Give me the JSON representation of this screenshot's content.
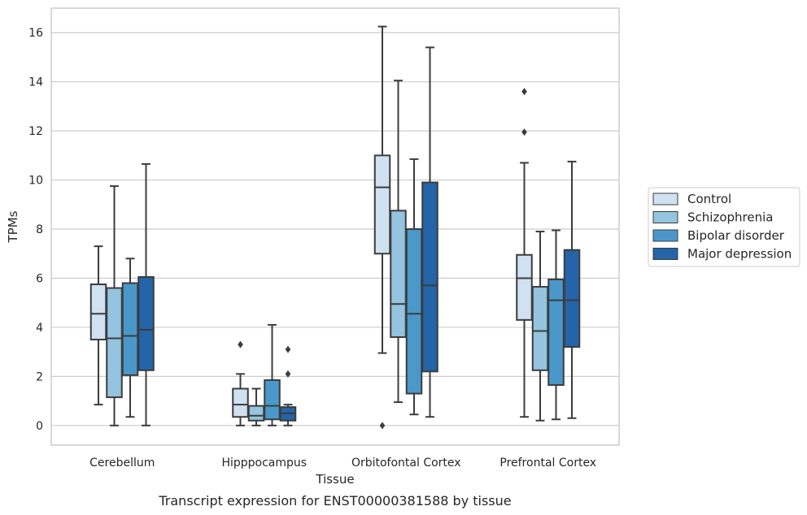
{
  "chart_data": {
    "type": "boxplot",
    "title": "Transcript expression for ENST00000381588 by tissue",
    "xlabel": "Tissue",
    "ylabel": "TPMs",
    "ylim": [
      -0.8,
      17
    ],
    "yticks": [
      0,
      2,
      4,
      6,
      8,
      10,
      12,
      14,
      16
    ],
    "grid": true,
    "legend_position": "right",
    "categories": [
      "Cerebellum",
      "Hipppocampus",
      "Orbitofontal Cortex",
      "Prefrontal Cortex"
    ],
    "series": [
      {
        "name": "Control",
        "color": "#d0e1f2",
        "boxes": [
          {
            "whislo": 0.85,
            "q1": 3.5,
            "med": 4.55,
            "q3": 5.75,
            "whishi": 7.3,
            "fliers": []
          },
          {
            "whislo": 0.0,
            "q1": 0.35,
            "med": 0.85,
            "q3": 1.5,
            "whishi": 2.1,
            "fliers": [
              3.3
            ]
          },
          {
            "whislo": 2.95,
            "q1": 7.0,
            "med": 9.7,
            "q3": 11.0,
            "whishi": 16.25,
            "fliers": [
              0.0
            ]
          },
          {
            "whislo": 0.35,
            "q1": 4.3,
            "med": 6.0,
            "q3": 6.95,
            "whishi": 10.7,
            "fliers": [
              11.95,
              13.6
            ]
          }
        ]
      },
      {
        "name": "Schizophrenia",
        "color": "#94c4df",
        "boxes": [
          {
            "whislo": 0.0,
            "q1": 1.15,
            "med": 3.55,
            "q3": 5.6,
            "whishi": 9.75,
            "fliers": []
          },
          {
            "whislo": 0.0,
            "q1": 0.2,
            "med": 0.4,
            "q3": 0.8,
            "whishi": 1.5,
            "fliers": []
          },
          {
            "whislo": 0.95,
            "q1": 3.6,
            "med": 4.95,
            "q3": 8.75,
            "whishi": 14.05,
            "fliers": []
          },
          {
            "whislo": 0.2,
            "q1": 2.25,
            "med": 3.85,
            "q3": 5.65,
            "whishi": 7.9,
            "fliers": []
          }
        ]
      },
      {
        "name": "Bipolar disorder",
        "color": "#4a98c9",
        "boxes": [
          {
            "whislo": 0.35,
            "q1": 2.05,
            "med": 3.65,
            "q3": 5.8,
            "whishi": 6.8,
            "fliers": []
          },
          {
            "whislo": 0.0,
            "q1": 0.25,
            "med": 0.8,
            "q3": 1.85,
            "whishi": 4.1,
            "fliers": []
          },
          {
            "whislo": 0.45,
            "q1": 1.3,
            "med": 4.55,
            "q3": 8.0,
            "whishi": 10.85,
            "fliers": []
          },
          {
            "whislo": 0.25,
            "q1": 1.65,
            "med": 5.1,
            "q3": 5.95,
            "whishi": 7.95,
            "fliers": []
          }
        ]
      },
      {
        "name": "Major depression",
        "color": "#2464a8",
        "boxes": [
          {
            "whislo": 0.0,
            "q1": 2.25,
            "med": 3.9,
            "q3": 6.05,
            "whishi": 10.65,
            "fliers": []
          },
          {
            "whislo": 0.0,
            "q1": 0.2,
            "med": 0.5,
            "q3": 0.75,
            "whishi": 0.85,
            "fliers": [
              2.1,
              3.1
            ]
          },
          {
            "whislo": 0.35,
            "q1": 2.2,
            "med": 5.7,
            "q3": 9.9,
            "whishi": 15.4,
            "fliers": []
          },
          {
            "whislo": 0.3,
            "q1": 3.2,
            "med": 5.1,
            "q3": 7.15,
            "whishi": 10.75,
            "fliers": []
          }
        ]
      }
    ]
  }
}
